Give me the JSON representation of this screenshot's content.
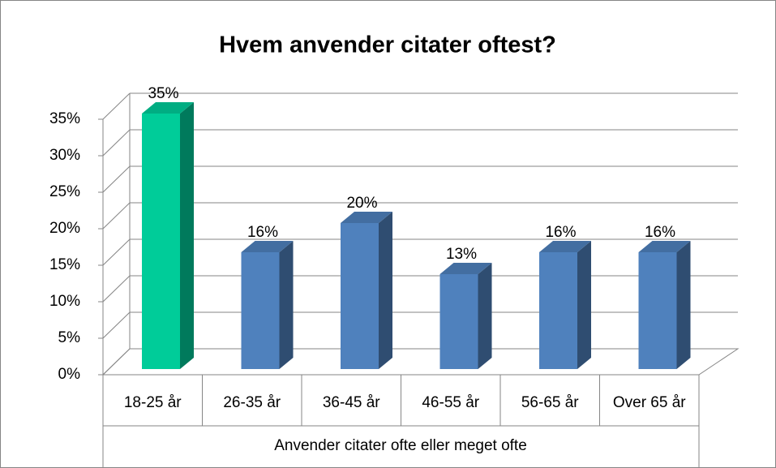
{
  "chart_data": {
    "type": "bar3d",
    "title": "Hvem anvender citater oftest?",
    "x_label": "Anvender citater ofte eller meget ofte",
    "categories": [
      "18-25 år",
      "26-35 år",
      "36-45 år",
      "46-55 år",
      "56-65 år",
      "Over 65 år"
    ],
    "values": [
      35,
      16,
      20,
      13,
      16,
      16
    ],
    "value_labels": [
      "35%",
      "16%",
      "20%",
      "13%",
      "16%",
      "16%"
    ],
    "colors": [
      "#00cc99",
      "#4f81bd",
      "#4f81bd",
      "#4f81bd",
      "#4f81bd",
      "#4f81bd"
    ],
    "ylim": [
      0,
      35
    ],
    "yticks": [
      {
        "value": 0,
        "label": "0%"
      },
      {
        "value": 5,
        "label": "5%"
      },
      {
        "value": 10,
        "label": "10%"
      },
      {
        "value": 15,
        "label": "15%"
      },
      {
        "value": 20,
        "label": "20%"
      },
      {
        "value": 25,
        "label": "25%"
      },
      {
        "value": 30,
        "label": "30%"
      },
      {
        "value": 35,
        "label": "35%"
      }
    ],
    "grid": true
  }
}
